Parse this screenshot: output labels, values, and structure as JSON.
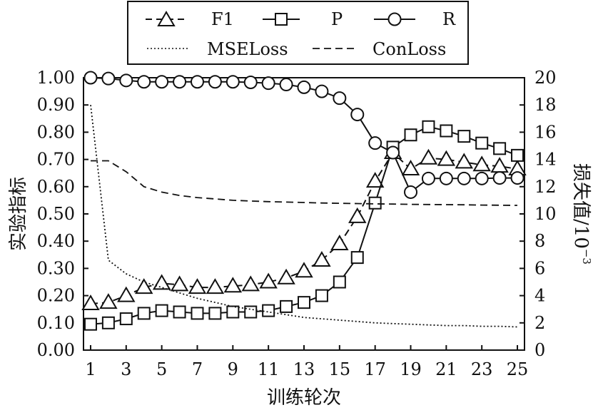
{
  "chart_data": {
    "type": "line",
    "xlabel": "训练轮次",
    "ylabel_left": "实验指标",
    "ylabel_right": "损失值/10",
    "ylabel_right_exp": "−3",
    "x_ticks": [
      1,
      3,
      5,
      7,
      9,
      11,
      13,
      15,
      17,
      19,
      21,
      23,
      25
    ],
    "xlim": [
      0.6,
      25.4
    ],
    "ylim_left": [
      0,
      1
    ],
    "ylim_right": [
      0,
      20
    ],
    "y_ticks_left": [
      "0.00",
      "0.10",
      "0.20",
      "0.30",
      "0.40",
      "0.50",
      "0.60",
      "0.70",
      "0.80",
      "0.90",
      "1.00"
    ],
    "y_ticks_right": [
      "0",
      "2",
      "4",
      "6",
      "8",
      "10",
      "12",
      "14",
      "16",
      "18",
      "20"
    ],
    "legend_position": "top",
    "x": [
      1,
      2,
      3,
      4,
      5,
      6,
      7,
      8,
      9,
      10,
      11,
      12,
      13,
      14,
      15,
      16,
      17,
      18,
      19,
      20,
      21,
      22,
      23,
      24,
      25
    ],
    "series": [
      {
        "name": "F1",
        "axis": "left",
        "marker": "triangle",
        "line": "dashed",
        "values": [
          0.17,
          0.175,
          0.2,
          0.23,
          0.245,
          0.24,
          0.23,
          0.23,
          0.235,
          0.24,
          0.25,
          0.265,
          0.29,
          0.33,
          0.39,
          0.49,
          0.62,
          0.725,
          0.665,
          0.705,
          0.7,
          0.69,
          0.68,
          0.675,
          0.665
        ]
      },
      {
        "name": "P",
        "axis": "left",
        "marker": "square",
        "line": "solid",
        "values": [
          0.095,
          0.1,
          0.115,
          0.135,
          0.145,
          0.14,
          0.135,
          0.135,
          0.14,
          0.14,
          0.145,
          0.16,
          0.175,
          0.2,
          0.25,
          0.34,
          0.54,
          0.745,
          0.79,
          0.82,
          0.805,
          0.785,
          0.76,
          0.74,
          0.715
        ]
      },
      {
        "name": "R",
        "axis": "left",
        "marker": "circle",
        "line": "solid",
        "values": [
          1.0,
          0.997,
          0.99,
          0.985,
          0.985,
          0.985,
          0.985,
          0.985,
          0.985,
          0.983,
          0.98,
          0.975,
          0.965,
          0.95,
          0.925,
          0.865,
          0.76,
          0.725,
          0.58,
          0.63,
          0.63,
          0.63,
          0.63,
          0.632,
          0.632
        ]
      },
      {
        "name": "MSELoss",
        "axis": "right",
        "marker": "none",
        "line": "dotted",
        "values": [
          18.0,
          6.6,
          5.6,
          5.0,
          4.6,
          4.2,
          3.8,
          3.5,
          3.2,
          3.0,
          2.8,
          2.6,
          2.4,
          2.3,
          2.2,
          2.1,
          2.0,
          1.95,
          1.9,
          1.85,
          1.8,
          1.8,
          1.75,
          1.75,
          1.7
        ]
      },
      {
        "name": "ConLoss",
        "axis": "right",
        "marker": "none",
        "line": "dashed",
        "values": [
          13.9,
          13.9,
          13.1,
          12.0,
          11.6,
          11.35,
          11.2,
          11.1,
          11.0,
          10.95,
          10.9,
          10.87,
          10.84,
          10.8,
          10.78,
          10.76,
          10.74,
          10.72,
          10.7,
          10.69,
          10.68,
          10.67,
          10.65,
          10.64,
          10.63
        ]
      }
    ]
  }
}
